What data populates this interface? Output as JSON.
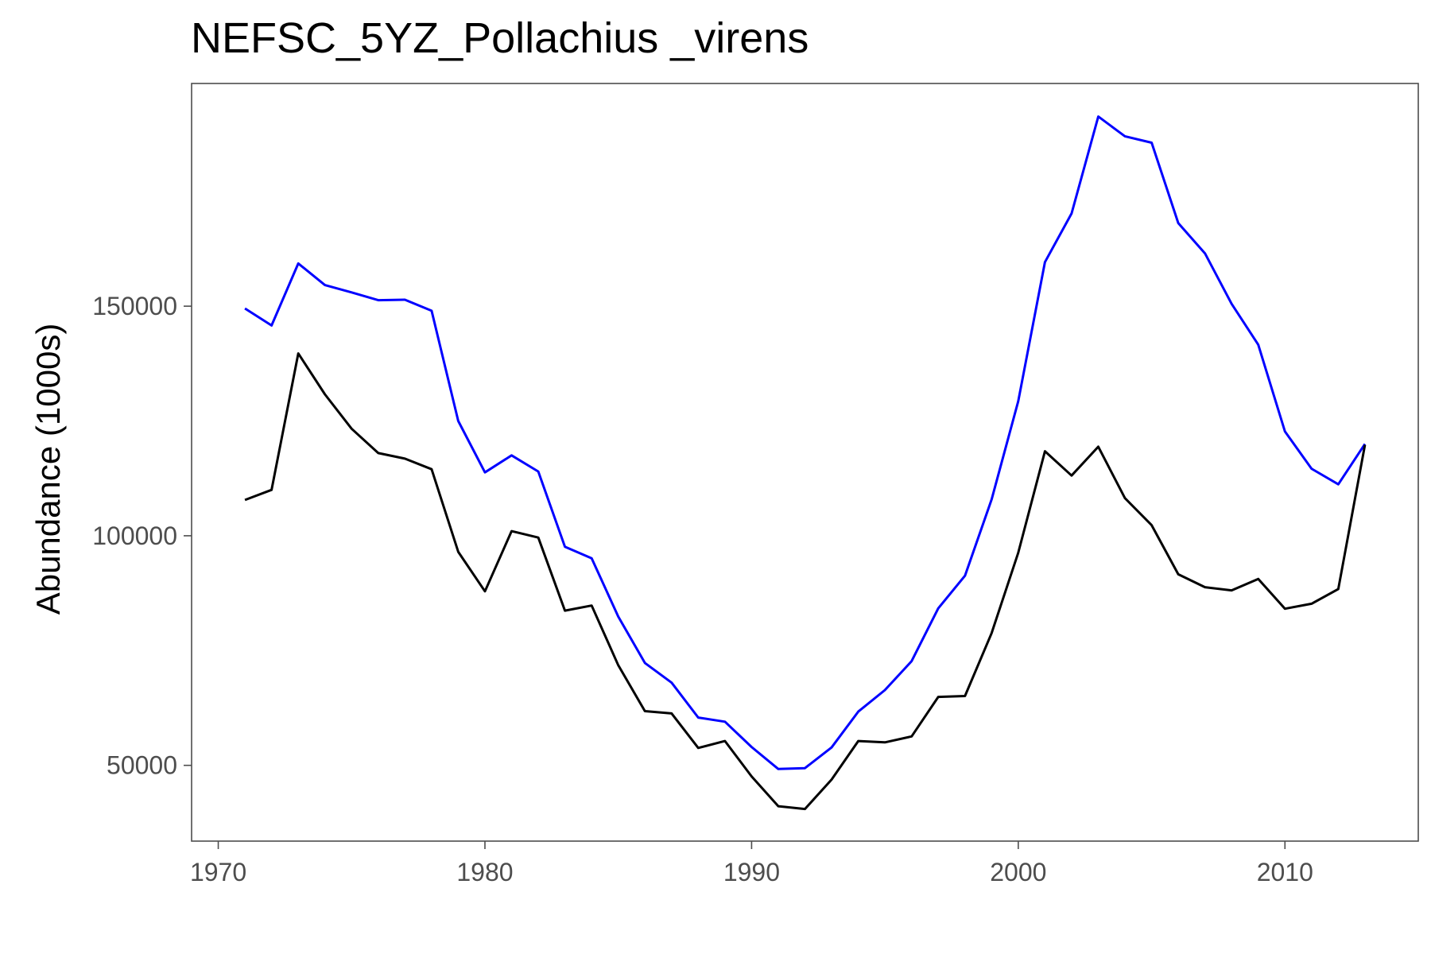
{
  "chart_data": {
    "type": "line",
    "title": "NEFSC_5YZ_Pollachius _virens",
    "xlabel": "",
    "ylabel": "Abundance (1000s)",
    "xlim": [
      1969,
      2015
    ],
    "ylim": [
      33500,
      198500
    ],
    "x_ticks": [
      1970,
      1980,
      1990,
      2000,
      2010
    ],
    "y_ticks": [
      50000,
      100000,
      150000
    ],
    "x_tick_labels": [
      "1970",
      "1980",
      "1990",
      "2000",
      "2010"
    ],
    "y_tick_labels": [
      "50000",
      "100000",
      "150000"
    ],
    "grid": false,
    "legend": "none",
    "x": [
      1971,
      1972,
      1973,
      1974,
      1975,
      1976,
      1977,
      1978,
      1979,
      1980,
      1981,
      1982,
      1983,
      1984,
      1985,
      1986,
      1987,
      1988,
      1989,
      1990,
      1991,
      1992,
      1993,
      1994,
      1995,
      1996,
      1997,
      1998,
      1999,
      2000,
      2001,
      2002,
      2003,
      2004,
      2005,
      2006,
      2007,
      2008,
      2009,
      2010,
      2011,
      2012,
      2013
    ],
    "series": [
      {
        "color": "#0000ff",
        "values": [
          149500,
          145800,
          159300,
          154600,
          153000,
          151300,
          151400,
          149000,
          125000,
          113800,
          117500,
          114000,
          97600,
          95100,
          82400,
          72300,
          68000,
          60400,
          59500,
          54000,
          49200,
          49400,
          53900,
          61700,
          66400,
          72700,
          84200,
          91300,
          107900,
          129300,
          159600,
          170200,
          191300,
          187000,
          185600,
          168100,
          161500,
          150500,
          141600,
          122700,
          114600,
          111200,
          120000
        ]
      },
      {
        "color": "#000000",
        "values": [
          107800,
          110000,
          139700,
          130800,
          123300,
          118000,
          116800,
          114500,
          96500,
          87900,
          101000,
          99600,
          83700,
          84800,
          71800,
          61800,
          61300,
          53800,
          55300,
          47600,
          41100,
          40500,
          46900,
          55300,
          55000,
          56300,
          64900,
          65100,
          78800,
          96300,
          118400,
          113100,
          119400,
          108200,
          102300,
          91600,
          88800,
          88100,
          90600,
          84100,
          85200,
          88400,
          119800
        ]
      }
    ]
  }
}
